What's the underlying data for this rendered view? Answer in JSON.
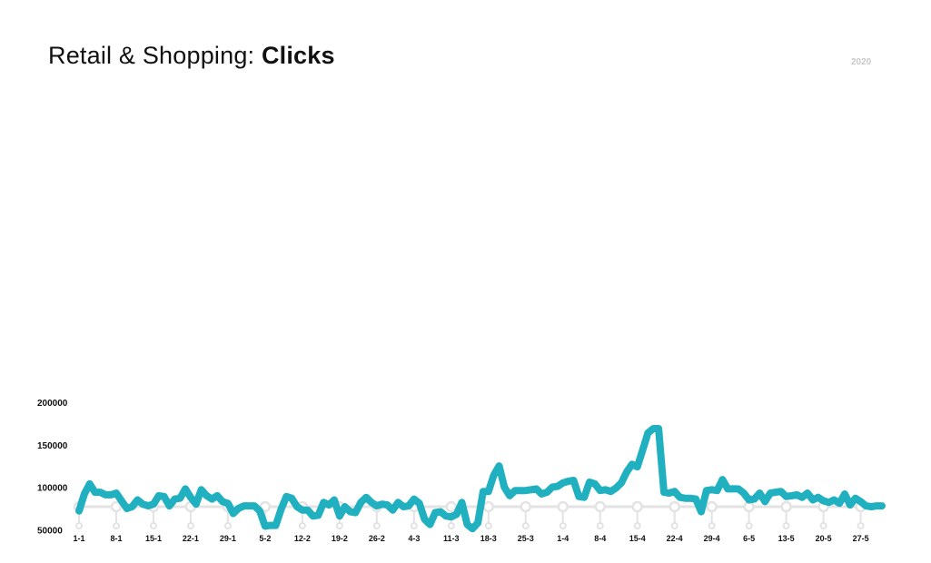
{
  "header": {
    "title_prefix": "Retail & Shopping: ",
    "title_metric": "Clicks",
    "year": "2020"
  },
  "colors": {
    "line": "#21b0bf",
    "timeline": "#e3e3e3",
    "text": "#111111",
    "year": "#c8c8c8"
  },
  "chart_data": {
    "type": "line",
    "title": "Retail & Shopping: Clicks",
    "ylim": [
      0,
      200000
    ],
    "y_ticks": [
      50000,
      100000,
      150000,
      200000
    ],
    "y_tick_labels": [
      "50000",
      "100000",
      "150000",
      "200000"
    ],
    "x_tick_labels": [
      "1-1",
      "8-1",
      "15-1",
      "22-1",
      "29-1",
      "5-2",
      "12-2",
      "19-2",
      "26-2",
      "4-3",
      "11-3",
      "18-3",
      "25-3",
      "1-4",
      "8-4",
      "15-4",
      "22-4",
      "29-4",
      "6-5",
      "13-5",
      "20-5",
      "27-5"
    ],
    "x_day_start": 1,
    "x_day_end": 152,
    "grid": false,
    "series": [
      {
        "values": [
          72000,
          92000,
          104000,
          94000,
          94000,
          91000,
          91000,
          93000,
          84000,
          75000,
          77000,
          85000,
          80000,
          78000,
          80000,
          90000,
          89000,
          78000,
          86000,
          87000,
          98000,
          88000,
          80000,
          97000,
          90000,
          86000,
          90000,
          83000,
          81000,
          69000,
          75000,
          78000,
          78000,
          78000,
          72000,
          54000,
          55000,
          55000,
          74000,
          89000,
          87000,
          77000,
          73000,
          73000,
          66000,
          67000,
          82000,
          79000,
          85000,
          66000,
          77000,
          71000,
          70000,
          82000,
          88000,
          82000,
          78000,
          80000,
          79000,
          73000,
          82000,
          77000,
          78000,
          86000,
          81000,
          62000,
          56000,
          70000,
          71000,
          66000,
          65000,
          68000,
          82000,
          56000,
          51000,
          58000,
          95000,
          95000,
          114000,
          125000,
          100000,
          90000,
          96000,
          96000,
          96000,
          97000,
          98000,
          92000,
          94000,
          100000,
          101000,
          105000,
          107000,
          108000,
          89000,
          88000,
          106000,
          104000,
          96000,
          97000,
          95000,
          99000,
          105000,
          118000,
          127000,
          124000,
          144000,
          164000,
          169000,
          169000,
          94000,
          93000,
          95000,
          88000,
          87000,
          87000,
          86000,
          71000,
          96000,
          97000,
          96000,
          109000,
          98000,
          98000,
          98000,
          93000,
          85000,
          86000,
          93000,
          83000,
          93000,
          94000,
          95000,
          89000,
          90000,
          91000,
          88000,
          93000,
          85000,
          88000,
          84000,
          82000,
          85000,
          81000,
          92000,
          79000,
          87000,
          83000,
          78000,
          77000,
          78000,
          78000
        ]
      }
    ]
  }
}
